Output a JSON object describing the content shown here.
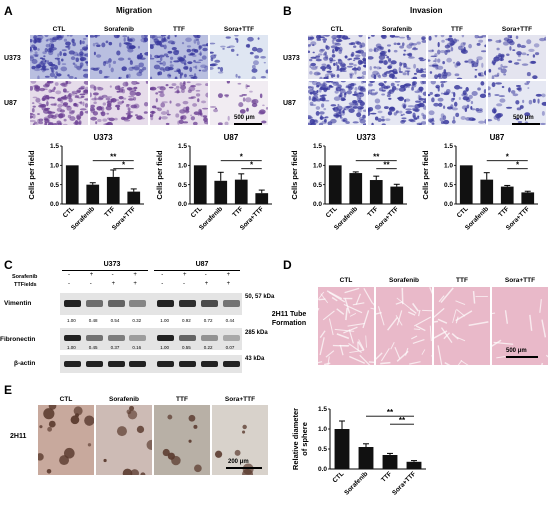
{
  "panels": {
    "A": {
      "letter": "A",
      "title": "Migration",
      "rows": [
        "U373",
        "U87"
      ],
      "cols": [
        "CTL",
        "Sorafenib",
        "TTF",
        "Sora+TTF"
      ],
      "scale": "500 μm"
    },
    "B": {
      "letter": "B",
      "title": "Invasion",
      "rows": [
        "U373",
        "U87"
      ],
      "cols": [
        "CTL",
        "Sorafenib",
        "TTF",
        "Sora+TTF"
      ],
      "scale": "500 μm"
    },
    "C": {
      "letter": "C",
      "cell_lines": [
        "U373",
        "U87"
      ],
      "row_labels": [
        "Sorafenib",
        "TTFields"
      ],
      "treatment_signs": {
        "sorafenib": [
          "-",
          "+",
          "-",
          "+",
          "-",
          "+",
          "-",
          "+"
        ],
        "ttfields": [
          "-",
          "-",
          "+",
          "+",
          "-",
          "-",
          "+",
          "+"
        ]
      },
      "proteins": [
        {
          "name": "Vimentin",
          "kda": "50, 57 kDa",
          "values": [
            "1.00",
            "0.48",
            "0.54",
            "0.32",
            "1.00",
            "0.92",
            "0.72",
            "0.44"
          ]
        },
        {
          "name": "Fibronectin",
          "kda": "285 kDa",
          "values": [
            "1.00",
            "0.45",
            "0.37",
            "0.16",
            "1.00",
            "0.55",
            "0.22",
            "0.07"
          ]
        },
        {
          "name": "β-actin",
          "kda": "43 kDa",
          "values": []
        }
      ]
    },
    "D": {
      "letter": "D",
      "row_label": "2H11 Tube Formation",
      "cols": [
        "CTL",
        "Sorafenib",
        "TTF",
        "Sora+TTF"
      ],
      "scale": "500 μm"
    },
    "E": {
      "letter": "E",
      "row_label": "2H11",
      "cols": [
        "CTL",
        "Sorafenib",
        "TTF",
        "Sora+TTF"
      ],
      "scale": "200 μm"
    }
  },
  "colors": {
    "bar": "#111111",
    "western_bg": "#e6e6e6",
    "tube_bg": "#e9b9c9",
    "crystal_bg": "#c7b7b3",
    "stain": "#3a3a9e"
  },
  "chart_data": [
    {
      "type": "bar",
      "title": "U373",
      "ylabel": "Cells per field",
      "categories": [
        "CTL",
        "Sorafenib",
        "TTF",
        "Sora+TTF"
      ],
      "values": [
        1.0,
        0.5,
        0.7,
        0.32
      ],
      "errors": [
        0.0,
        0.05,
        0.18,
        0.07
      ],
      "ylim": [
        0,
        1.5
      ],
      "yticks": [
        "0.0",
        "0.5",
        "1.0",
        "1.5"
      ],
      "annotations": [
        "**",
        "*"
      ]
    },
    {
      "type": "bar",
      "title": "U87",
      "ylabel": "Cells per field",
      "categories": [
        "CTL",
        "Sorafenib",
        "TTF",
        "Sora+TTF"
      ],
      "values": [
        1.0,
        0.6,
        0.63,
        0.28
      ],
      "errors": [
        0.0,
        0.22,
        0.15,
        0.08
      ],
      "ylim": [
        0,
        1.5
      ],
      "yticks": [
        "0.0",
        "0.5",
        "1.0",
        "1.5"
      ],
      "annotations": [
        "*",
        "*"
      ]
    },
    {
      "type": "bar",
      "title": "U373",
      "ylabel": "Cells per field",
      "categories": [
        "CTL",
        "Sorafenib",
        "TTF",
        "Sora+TTF"
      ],
      "values": [
        1.0,
        0.8,
        0.62,
        0.45
      ],
      "errors": [
        0.0,
        0.03,
        0.1,
        0.06
      ],
      "ylim": [
        0,
        1.5
      ],
      "yticks": [
        "0.0",
        "0.5",
        "1.0",
        "1.5"
      ],
      "annotations": [
        "**",
        "**"
      ]
    },
    {
      "type": "bar",
      "title": "U87",
      "ylabel": "Cells per field",
      "categories": [
        "CTL",
        "Sorafenib",
        "TTF",
        "Sora+TTF"
      ],
      "values": [
        1.0,
        0.63,
        0.45,
        0.3
      ],
      "errors": [
        0.0,
        0.18,
        0.03,
        0.03
      ],
      "ylim": [
        0,
        1.5
      ],
      "yticks": [
        "0.0",
        "0.5",
        "1.0",
        "1.5"
      ],
      "annotations": [
        "*",
        "*"
      ]
    },
    {
      "type": "bar",
      "title": "",
      "ylabel": "Relative diameter of sphere",
      "categories": [
        "CTL",
        "Sorafenib",
        "TTF",
        "Sora+TTF"
      ],
      "values": [
        1.0,
        0.55,
        0.35,
        0.18
      ],
      "errors": [
        0.2,
        0.08,
        0.04,
        0.03
      ],
      "ylim": [
        0,
        1.5
      ],
      "yticks": [
        "0.0",
        "0.5",
        "1.0",
        "1.5"
      ],
      "annotations": [
        "**",
        "**"
      ]
    }
  ]
}
